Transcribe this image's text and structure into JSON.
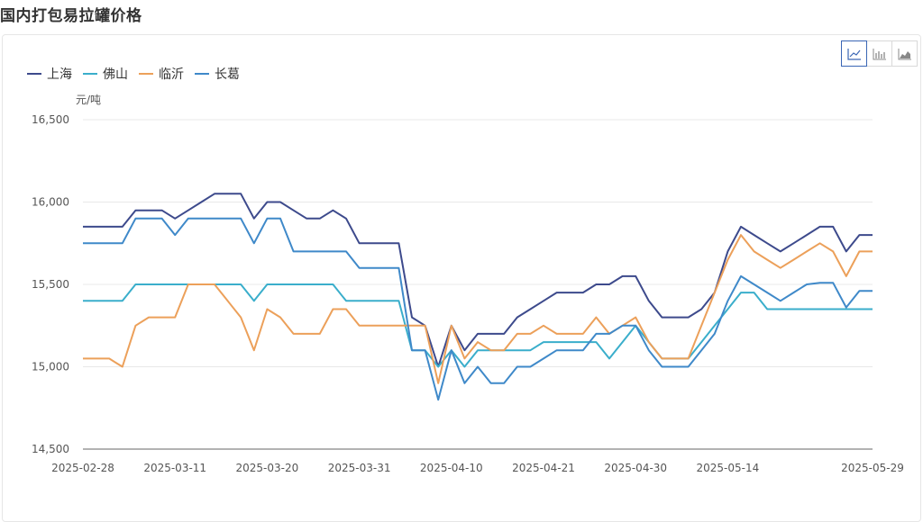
{
  "page": {
    "title": "国内打包易拉罐价格"
  },
  "toolbar": {
    "buttons": [
      {
        "icon": "line-chart-icon",
        "active": true
      },
      {
        "icon": "bar-chart-icon",
        "active": false
      },
      {
        "icon": "area-chart-icon",
        "active": false
      }
    ]
  },
  "chart_data": {
    "type": "line",
    "title": "",
    "ylabel": "元/吨",
    "xlabel": "",
    "ylim": [
      14500,
      16500
    ],
    "yticks": [
      "16,500",
      "16,000",
      "15,500",
      "15,000",
      "14,500"
    ],
    "ytick_values": [
      16500,
      16000,
      15500,
      15000,
      14500
    ],
    "grid": true,
    "legend_position": "top-left",
    "xticks": [
      "2025-02-28",
      "2025-03-11",
      "2025-03-20",
      "2025-03-31",
      "2025-04-10",
      "2025-04-21",
      "2025-04-30",
      "2025-05-14",
      "2025-05-29"
    ],
    "xtick_index": [
      0,
      7,
      14,
      21,
      28,
      35,
      42,
      49,
      60
    ],
    "point_count": 61,
    "series": [
      {
        "name": "上海",
        "color": "#3d4a8c",
        "values": [
          15850,
          15850,
          15850,
          15850,
          15950,
          15950,
          15950,
          15900,
          15950,
          16000,
          16050,
          16050,
          16050,
          15900,
          16000,
          16000,
          15950,
          15900,
          15900,
          15950,
          15900,
          15750,
          15750,
          15750,
          15750,
          15300,
          15250,
          15000,
          15250,
          15100,
          15200,
          15200,
          15200,
          15300,
          15350,
          15400,
          15450,
          15450,
          15450,
          15500,
          15500,
          15550,
          15550,
          15400,
          15300,
          15300,
          15300,
          15350,
          15450,
          15700,
          15850,
          15800,
          15750,
          15700,
          15750,
          15800,
          15850,
          15850,
          15700,
          15800,
          15800
        ]
      },
      {
        "name": "佛山",
        "color": "#3aaecb",
        "values": [
          15400,
          15400,
          15400,
          15400,
          15500,
          15500,
          15500,
          15500,
          15500,
          15500,
          15500,
          15500,
          15500,
          15400,
          15500,
          15500,
          15500,
          15500,
          15500,
          15500,
          15400,
          15400,
          15400,
          15400,
          15400,
          15100,
          15100,
          15000,
          15100,
          15000,
          15100,
          15100,
          15100,
          15100,
          15100,
          15150,
          15150,
          15150,
          15150,
          15150,
          15050,
          15150,
          15250,
          15150,
          15050,
          15050,
          15050,
          15150,
          15250,
          15350,
          15450,
          15450,
          15350,
          15350,
          15350,
          15350,
          15350,
          15350,
          15350,
          15350,
          15350
        ]
      },
      {
        "name": "临沂",
        "color": "#eca05a",
        "values": [
          15050,
          15050,
          15050,
          15000,
          15250,
          15300,
          15300,
          15300,
          15500,
          15500,
          15500,
          15400,
          15300,
          15100,
          15350,
          15300,
          15200,
          15200,
          15200,
          15350,
          15350,
          15250,
          15250,
          15250,
          15250,
          15250,
          15250,
          14900,
          15250,
          15050,
          15150,
          15100,
          15100,
          15200,
          15200,
          15250,
          15200,
          15200,
          15200,
          15300,
          15200,
          15250,
          15300,
          15150,
          15050,
          15050,
          15050,
          15250,
          15450,
          15650,
          15800,
          15700,
          15650,
          15600,
          15650,
          15700,
          15750,
          15700,
          15550,
          15700,
          15700
        ]
      },
      {
        "name": "长葛",
        "color": "#3f89c9",
        "values": [
          15750,
          15750,
          15750,
          15750,
          15900,
          15900,
          15900,
          15800,
          15900,
          15900,
          15900,
          15900,
          15900,
          15750,
          15900,
          15900,
          15700,
          15700,
          15700,
          15700,
          15700,
          15600,
          15600,
          15600,
          15600,
          15100,
          15100,
          14800,
          15100,
          14900,
          15000,
          14900,
          14900,
          15000,
          15000,
          15050,
          15100,
          15100,
          15100,
          15200,
          15200,
          15250,
          15250,
          15100,
          15000,
          15000,
          15000,
          15100,
          15200,
          15400,
          15550,
          15500,
          15450,
          15400,
          15450,
          15500,
          15510,
          15510,
          15360,
          15460,
          15460
        ]
      }
    ]
  }
}
